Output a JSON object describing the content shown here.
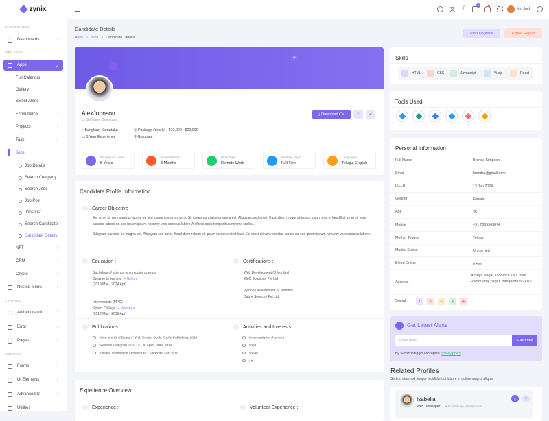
{
  "brand": {
    "name": "zynix"
  },
  "sidebar": {
    "items": [
      {
        "label": "DASHBOARDS",
        "type": "section"
      },
      {
        "label": "Dashboards",
        "type": "main",
        "chevron": true
      },
      {
        "label": "WEB APPS",
        "type": "section"
      },
      {
        "label": "Apps",
        "type": "main apps",
        "chevron": true
      },
      {
        "label": "Full Calendar",
        "type": "sub"
      },
      {
        "label": "Gallery",
        "type": "sub"
      },
      {
        "label": "Sweet Alerts",
        "type": "sub"
      },
      {
        "label": "Ecommerce",
        "type": "sub",
        "chevron": true
      },
      {
        "label": "Projects",
        "type": "sub",
        "chevron": true
      },
      {
        "label": "Task",
        "type": "sub",
        "chevron": true
      },
      {
        "label": "Jobs",
        "type": "sub jobs",
        "chevron": true
      },
      {
        "label": "Job Details",
        "type": "subsub"
      },
      {
        "label": "Search Company",
        "type": "subsub"
      },
      {
        "label": "Search Jobs",
        "type": "subsub"
      },
      {
        "label": "Job Post",
        "type": "subsub"
      },
      {
        "label": "Jobs List",
        "type": "subsub"
      },
      {
        "label": "Search Candidate",
        "type": "subsub"
      },
      {
        "label": "Candidate Details",
        "type": "subsub active"
      },
      {
        "label": "NFT",
        "type": "sub",
        "chevron": true
      },
      {
        "label": "CRM",
        "type": "sub",
        "chevron": true
      },
      {
        "label": "Crypto",
        "type": "sub",
        "chevron": true
      },
      {
        "label": "Nested Menu",
        "type": "main",
        "chevron": true
      },
      {
        "label": "CRAFTED",
        "type": "section"
      },
      {
        "label": "Authentication",
        "type": "main",
        "chevron": true
      },
      {
        "label": "Error",
        "type": "main",
        "chevron": true
      },
      {
        "label": "Pages",
        "type": "main",
        "chevron": true
      },
      {
        "label": "MODULES",
        "type": "section"
      },
      {
        "label": "Forms",
        "type": "main",
        "chevron": true
      },
      {
        "label": "Ui Elements",
        "type": "main",
        "chevron": true
      },
      {
        "label": "Advanced UI",
        "type": "main",
        "chevron": true
      },
      {
        "label": "Utilities",
        "type": "main",
        "chevron": true
      }
    ]
  },
  "header": {
    "user": "Mr. Jack",
    "notification_count": "5"
  },
  "page": {
    "title": "Candidate Details",
    "breadcrumb": [
      "Apps",
      "Jobs",
      "Candidate Details"
    ],
    "plan_upgrade": "Plan Upgrade",
    "export_report": "Export Report"
  },
  "profile": {
    "name": "AlexJohnson",
    "role": "Software Developer",
    "location": "Banglore, Karnataka",
    "package": "Package (Yearly) : $10,000 - $20,000",
    "experience": "5 Year Experience",
    "education": "Graduate",
    "download_cv": "Download CV",
    "stats": [
      {
        "label": "Experience Level",
        "value": "5 Years",
        "color": "#7b68ee"
      },
      {
        "label": "Notice Period",
        "value": "3 Months",
        "color": "#ff5a29"
      },
      {
        "label": "Work Type",
        "value": "Remote Work",
        "color": "#21ce6f"
      },
      {
        "label": "Working Days",
        "value": "Full Time",
        "color": "#1e9bff"
      },
      {
        "label": "Languages",
        "value": "Telugu, English",
        "color": "#ff9f1a"
      }
    ]
  },
  "info": {
    "title": "Candidate Profile Information",
    "career_title": "Career Objective :",
    "career_p1": "Est amet sit vero sanctus labore no sed ipsum ipsum nonumy. Sit ipsum sanctus ea magna est. Aliquyam sed amet. Kasd diam rebum sit ipsum ipsum erat et kasd.Est amet sit vero sanctus labore no sed ipsum ipsum nonumy vero sanctus labore.A officiis optio temporibus minima facilis...",
    "career_p2": "Sit ipsum sanctus ea magna est. Aliquyam sed amet. Kasd diam rebum sit ipsum ipsum erat et kasd.Est amet sit vero sanctus labore no sed ipsum ipsum nonumy vero sanctus labore..",
    "education_title": "Education :",
    "education": [
      {
        "degree": "Bachelors of science in computer science",
        "school": "Dwayne University",
        "place": "Nellore",
        "dates": "(2019 Mar - 2024 Apr)"
      },
      {
        "degree": "Intermediate (MPC)",
        "school": "Sprect College",
        "place": "Warangal",
        "dates": "(2017 Mar - 2019 Apr)"
      }
    ],
    "cert_title": "Certifications :",
    "certs": [
      {
        "name": "Web Development (3 Months)",
        "org": "EMC Solutions Pvt Ltd"
      },
      {
        "name": "Python Development (6 Months)",
        "org": "Dabre Services Pvt Ltd"
      }
    ],
    "pub_title": "Publications :",
    "publications": [
      "\"One of a Kind Design,\" Web Design Book, Poulin Publishing, 2018",
      "\"Website Design in 2019,\" A List Apart, June 2019",
      "\"Usable Information Architecture,\" SitePoint, Feb 2019"
    ],
    "act_title": "Activities and Interests :",
    "activities": [
      "Community Involvement",
      "Yoga",
      "Travel",
      "Art"
    ]
  },
  "experience": {
    "title": "Experience Overview",
    "exp_label": "Experience :",
    "vol_label": "Volunteer Experience :"
  },
  "skills": {
    "title": "Skills",
    "items": [
      {
        "label": "HTML",
        "color": "#ddd6fe"
      },
      {
        "label": "CSS",
        "color": "#fdd5c8"
      },
      {
        "label": "Javascript",
        "color": "#c9f0d8"
      },
      {
        "label": "Vuejs",
        "color": "#cde6fd"
      },
      {
        "label": "React",
        "color": "#fde2c4"
      }
    ]
  },
  "tools": {
    "title": "Tools Used",
    "colors": [
      "#21a0e0",
      "#16a085",
      "#3b82f6",
      "#1e9bff",
      "#f87171",
      "#f59e0b"
    ]
  },
  "personal": {
    "title": "Personal Information",
    "rows": [
      {
        "k": "Full Name",
        "v": ": Brenda Simpson"
      },
      {
        "k": "Email",
        "v": ": brendra@gmail.com"
      },
      {
        "k": "D.O.B",
        "v": ": 13 Jan 2024"
      },
      {
        "k": "Gender",
        "v": ": Female"
      },
      {
        "k": "Age",
        "v": ": 35"
      },
      {
        "k": "Mobile",
        "v": ": +91 7865343874"
      },
      {
        "k": "Mother Tongue",
        "v": ": Telugu"
      },
      {
        "k": "Marital Status",
        "v": ": Unmarried"
      },
      {
        "k": "Blood Group",
        "v": ": o +ve"
      },
      {
        "k": "Address",
        "v": "Akshya Nagar 1st Block 1st Cross, Rammurthy nagar, Bangalore-560016"
      }
    ],
    "social_label": "Social :",
    "social": [
      {
        "icon": "facebook",
        "color": "#e7e2fd",
        "fg": "#7b68ee",
        "glyph": "f"
      },
      {
        "icon": "x",
        "color": "#fde0da",
        "fg": "#ff5a29",
        "glyph": "X"
      },
      {
        "icon": "dribbble",
        "color": "#fdebd3",
        "fg": "#ff9f1a",
        "glyph": "●"
      },
      {
        "icon": "whatsapp",
        "color": "#d5f5e1",
        "fg": "#21ce6f",
        "glyph": "●"
      },
      {
        "icon": "youtube",
        "color": "#fde0e0",
        "fg": "#f43f5e",
        "glyph": "▶"
      }
    ]
  },
  "alerts": {
    "title": "Get Latest Alerts",
    "placeholder": "Email Here",
    "subscribe": "Subscribe",
    "note": "By Subscribing you accept to",
    "link": "privacy policy"
  },
  "related": {
    "title": "Related Profiles",
    "subtitle": "Sed do eiusmod tempor incididunt ut labore et dolore magna aliqua",
    "name": "Isabella",
    "role": "Web Developer",
    "location": "Gachibowli, Hyderabad"
  },
  "colors": {
    "accent": "#7b68ee",
    "orange": "#ff5a29"
  }
}
